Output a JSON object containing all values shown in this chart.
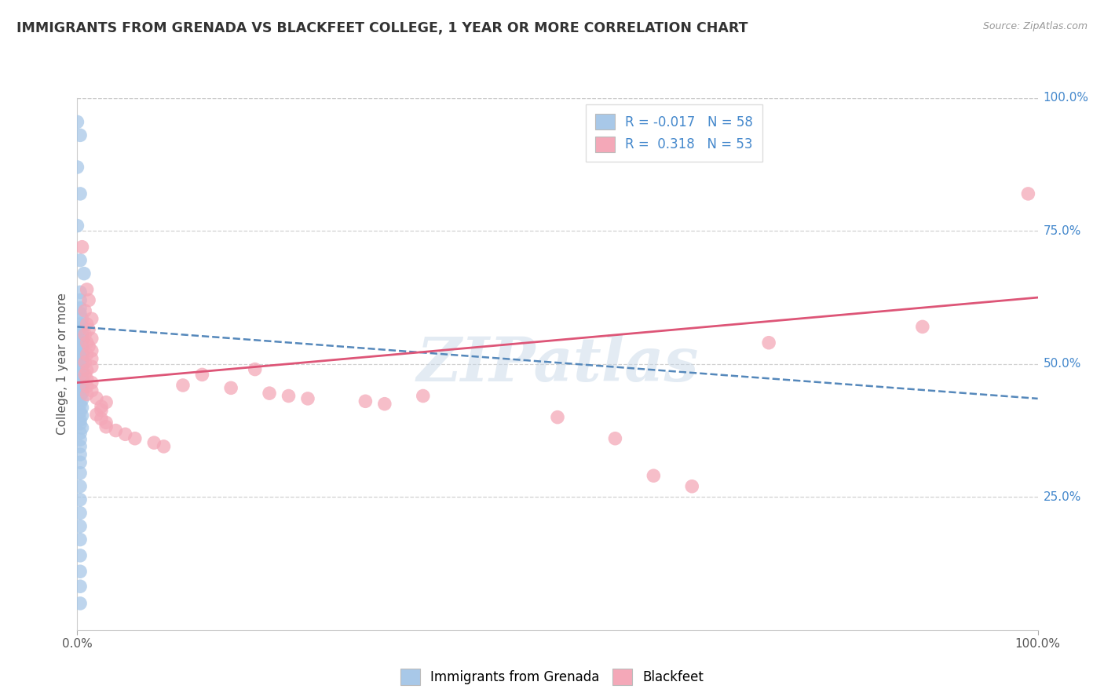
{
  "title": "IMMIGRANTS FROM GRENADA VS BLACKFEET COLLEGE, 1 YEAR OR MORE CORRELATION CHART",
  "source": "Source: ZipAtlas.com",
  "ylabel": "College, 1 year or more",
  "xlim": [
    0.0,
    1.0
  ],
  "ylim": [
    0.0,
    1.0
  ],
  "ytick_labels_right": [
    "100.0%",
    "75.0%",
    "50.0%",
    "25.0%"
  ],
  "ytick_positions_right": [
    1.0,
    0.75,
    0.5,
    0.25
  ],
  "grid_color": "#cccccc",
  "background_color": "#ffffff",
  "watermark": "ZIPatlas",
  "legend_R1": "-0.017",
  "legend_N1": "58",
  "legend_R2": "0.318",
  "legend_N2": "53",
  "blue_color": "#a8c8e8",
  "pink_color": "#f4a8b8",
  "blue_line_color": "#5588bb",
  "pink_line_color": "#dd5577",
  "blue_scatter": [
    [
      0.0,
      0.955
    ],
    [
      0.003,
      0.93
    ],
    [
      0.0,
      0.87
    ],
    [
      0.003,
      0.82
    ],
    [
      0.0,
      0.76
    ],
    [
      0.003,
      0.695
    ],
    [
      0.007,
      0.67
    ],
    [
      0.003,
      0.635
    ],
    [
      0.003,
      0.62
    ],
    [
      0.003,
      0.605
    ],
    [
      0.003,
      0.595
    ],
    [
      0.005,
      0.585
    ],
    [
      0.003,
      0.575
    ],
    [
      0.005,
      0.57
    ],
    [
      0.003,
      0.565
    ],
    [
      0.005,
      0.558
    ],
    [
      0.003,
      0.552
    ],
    [
      0.005,
      0.545
    ],
    [
      0.003,
      0.54
    ],
    [
      0.005,
      0.533
    ],
    [
      0.003,
      0.527
    ],
    [
      0.005,
      0.52
    ],
    [
      0.003,
      0.514
    ],
    [
      0.005,
      0.508
    ],
    [
      0.003,
      0.502
    ],
    [
      0.005,
      0.496
    ],
    [
      0.003,
      0.49
    ],
    [
      0.005,
      0.484
    ],
    [
      0.003,
      0.478
    ],
    [
      0.005,
      0.472
    ],
    [
      0.003,
      0.465
    ],
    [
      0.005,
      0.458
    ],
    [
      0.003,
      0.452
    ],
    [
      0.005,
      0.446
    ],
    [
      0.003,
      0.44
    ],
    [
      0.005,
      0.433
    ],
    [
      0.003,
      0.425
    ],
    [
      0.005,
      0.418
    ],
    [
      0.003,
      0.41
    ],
    [
      0.005,
      0.403
    ],
    [
      0.003,
      0.395
    ],
    [
      0.003,
      0.388
    ],
    [
      0.005,
      0.38
    ],
    [
      0.003,
      0.37
    ],
    [
      0.003,
      0.358
    ],
    [
      0.003,
      0.345
    ],
    [
      0.003,
      0.33
    ],
    [
      0.003,
      0.315
    ],
    [
      0.003,
      0.295
    ],
    [
      0.003,
      0.27
    ],
    [
      0.003,
      0.245
    ],
    [
      0.003,
      0.22
    ],
    [
      0.003,
      0.195
    ],
    [
      0.003,
      0.17
    ],
    [
      0.003,
      0.14
    ],
    [
      0.003,
      0.11
    ],
    [
      0.003,
      0.082
    ],
    [
      0.003,
      0.05
    ]
  ],
  "pink_scatter": [
    [
      0.005,
      0.72
    ],
    [
      0.01,
      0.64
    ],
    [
      0.012,
      0.62
    ],
    [
      0.008,
      0.6
    ],
    [
      0.015,
      0.585
    ],
    [
      0.01,
      0.575
    ],
    [
      0.012,
      0.565
    ],
    [
      0.008,
      0.555
    ],
    [
      0.015,
      0.548
    ],
    [
      0.01,
      0.54
    ],
    [
      0.012,
      0.533
    ],
    [
      0.015,
      0.525
    ],
    [
      0.01,
      0.518
    ],
    [
      0.015,
      0.51
    ],
    [
      0.008,
      0.503
    ],
    [
      0.015,
      0.495
    ],
    [
      0.01,
      0.488
    ],
    [
      0.008,
      0.48
    ],
    [
      0.01,
      0.472
    ],
    [
      0.015,
      0.465
    ],
    [
      0.01,
      0.458
    ],
    [
      0.015,
      0.45
    ],
    [
      0.01,
      0.443
    ],
    [
      0.02,
      0.436
    ],
    [
      0.03,
      0.428
    ],
    [
      0.025,
      0.42
    ],
    [
      0.025,
      0.413
    ],
    [
      0.02,
      0.405
    ],
    [
      0.025,
      0.397
    ],
    [
      0.03,
      0.39
    ],
    [
      0.03,
      0.382
    ],
    [
      0.04,
      0.375
    ],
    [
      0.05,
      0.368
    ],
    [
      0.06,
      0.36
    ],
    [
      0.08,
      0.352
    ],
    [
      0.09,
      0.345
    ],
    [
      0.11,
      0.46
    ],
    [
      0.13,
      0.48
    ],
    [
      0.16,
      0.455
    ],
    [
      0.185,
      0.49
    ],
    [
      0.2,
      0.445
    ],
    [
      0.22,
      0.44
    ],
    [
      0.24,
      0.435
    ],
    [
      0.3,
      0.43
    ],
    [
      0.32,
      0.425
    ],
    [
      0.36,
      0.44
    ],
    [
      0.5,
      0.4
    ],
    [
      0.56,
      0.36
    ],
    [
      0.6,
      0.29
    ],
    [
      0.64,
      0.27
    ],
    [
      0.72,
      0.54
    ],
    [
      0.88,
      0.57
    ],
    [
      0.99,
      0.82
    ]
  ],
  "blue_line_y_start": 0.57,
  "blue_line_y_end": 0.435,
  "pink_line_y_start": 0.465,
  "pink_line_y_end": 0.625
}
